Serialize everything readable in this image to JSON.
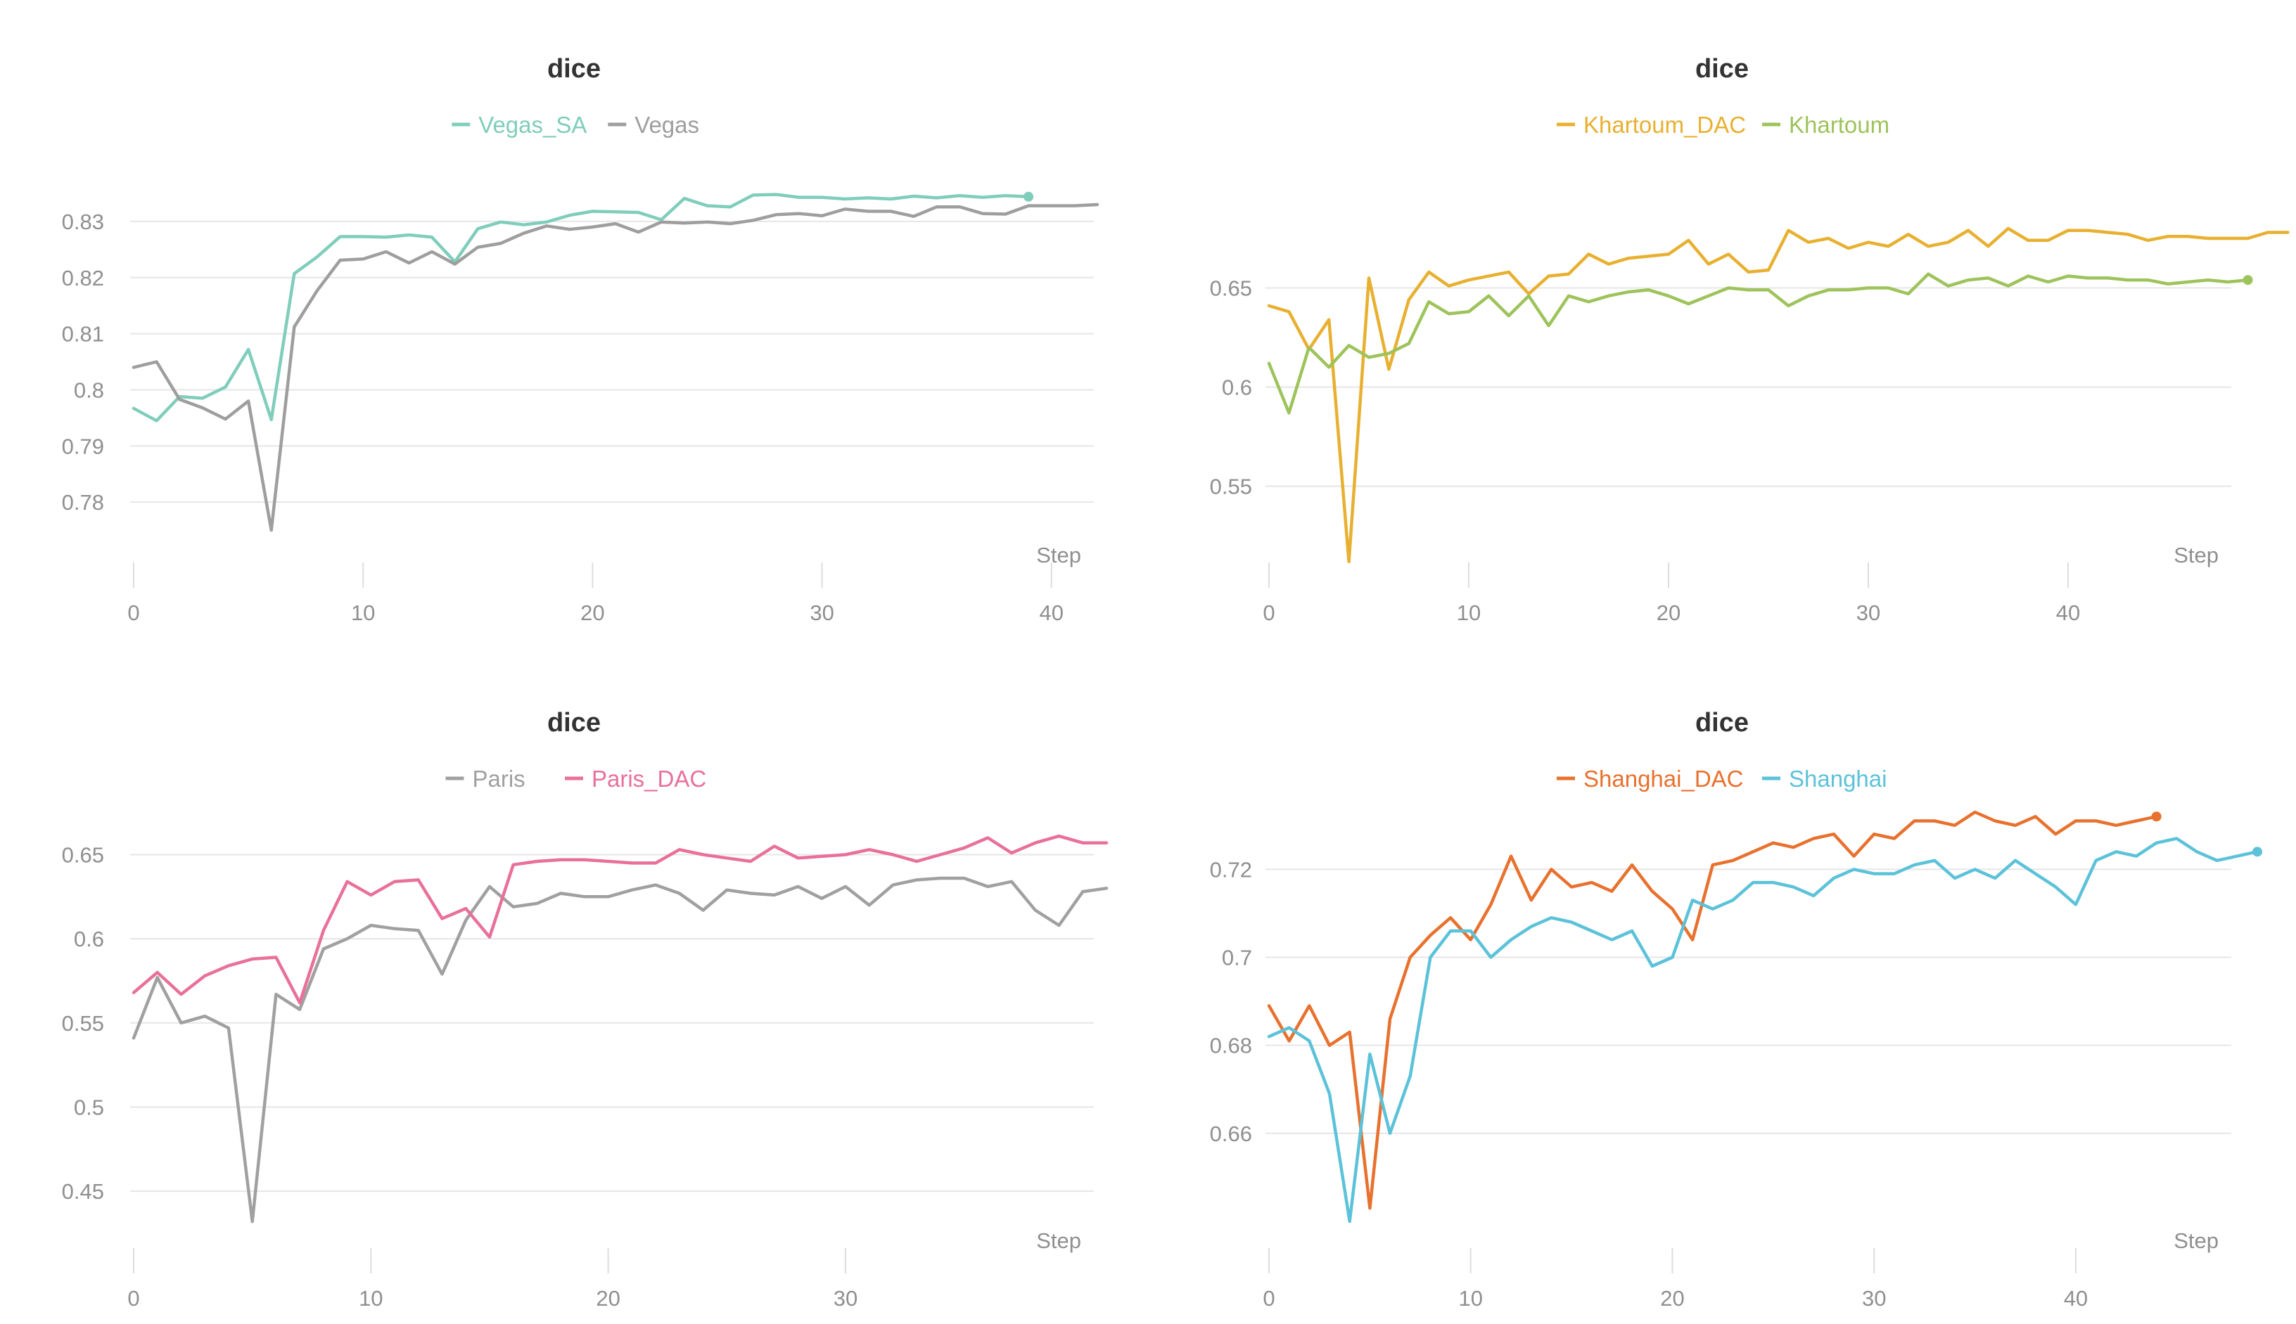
{
  "chart_data": [
    {
      "type": "line",
      "title": "dice",
      "xlabel": "Step",
      "xlim": [
        0,
        42
      ],
      "ylim": [
        0.773,
        0.835
      ],
      "xticks": [
        0,
        10,
        20,
        30,
        40
      ],
      "yticks": [
        0.78,
        0.79,
        0.8,
        0.81,
        0.82,
        0.83
      ],
      "yticklabels": [
        "0.78",
        "0.79",
        "0.8",
        "0.81",
        "0.82",
        "0.83"
      ],
      "legend_position": "top-center",
      "series": [
        {
          "name": "Vegas_SA",
          "color": "#7fcdbb",
          "values": [
            0.7967,
            0.7945,
            0.7988,
            0.7985,
            0.8005,
            0.8072,
            0.7947,
            0.8207,
            0.8237,
            0.8273,
            0.8273,
            0.8272,
            0.8276,
            0.8272,
            0.8228,
            0.8287,
            0.8299,
            0.8294,
            0.8299,
            0.8311,
            0.8318,
            0.8317,
            0.8316,
            0.8303,
            0.8341,
            0.8328,
            0.8326,
            0.8347,
            0.8348,
            0.8343,
            0.8343,
            0.834,
            0.8342,
            0.834,
            0.8345,
            0.8342,
            0.8346,
            0.8343,
            0.8346,
            0.8344
          ],
          "end_marker": true
        },
        {
          "name": "Vegas",
          "color": "#9e9e9e",
          "values": [
            0.804,
            0.805,
            0.7983,
            0.7968,
            0.7948,
            0.798,
            0.775,
            0.8112,
            0.8177,
            0.8231,
            0.8233,
            0.8246,
            0.8226,
            0.8246,
            0.8224,
            0.8254,
            0.8261,
            0.8279,
            0.8292,
            0.8286,
            0.829,
            0.8296,
            0.8281,
            0.8299,
            0.8297,
            0.8299,
            0.8296,
            0.8302,
            0.8312,
            0.8314,
            0.831,
            0.8322,
            0.8318,
            0.8318,
            0.8309,
            0.8326,
            0.8326,
            0.8314,
            0.8313,
            0.8328,
            0.8328,
            0.8328,
            0.833
          ]
        }
      ]
    },
    {
      "type": "line",
      "title": "dice",
      "xlabel": "Step",
      "xlim": [
        0,
        50
      ],
      "ylim": [
        0.508,
        0.703
      ],
      "xticks": [
        0,
        10,
        20,
        30,
        40
      ],
      "yticks": [
        0.55,
        0.6,
        0.65
      ],
      "yticklabels": [
        "0.55",
        "0.6",
        "0.65"
      ],
      "legend_position": "top-center",
      "series": [
        {
          "name": "Khartoum_DAC",
          "color": "#e8b030",
          "values": [
            0.641,
            0.638,
            0.619,
            0.634,
            0.512,
            0.655,
            0.609,
            0.644,
            0.658,
            0.651,
            0.654,
            0.656,
            0.658,
            0.647,
            0.656,
            0.657,
            0.667,
            0.662,
            0.665,
            0.666,
            0.667,
            0.674,
            0.662,
            0.667,
            0.658,
            0.659,
            0.679,
            0.673,
            0.675,
            0.67,
            0.673,
            0.671,
            0.677,
            0.671,
            0.673,
            0.679,
            0.671,
            0.68,
            0.674,
            0.674,
            0.679,
            0.679,
            0.678,
            0.677,
            0.674,
            0.676,
            0.676,
            0.675,
            0.675,
            0.675,
            0.678,
            0.678
          ]
        },
        {
          "name": "Khartoum",
          "color": "#9dc35a",
          "values": [
            0.612,
            0.587,
            0.62,
            0.61,
            0.621,
            0.615,
            0.617,
            0.622,
            0.643,
            0.637,
            0.638,
            0.646,
            0.636,
            0.646,
            0.631,
            0.646,
            0.643,
            0.646,
            0.648,
            0.649,
            0.646,
            0.642,
            0.646,
            0.65,
            0.649,
            0.649,
            0.641,
            0.646,
            0.649,
            0.649,
            0.65,
            0.65,
            0.647,
            0.657,
            0.651,
            0.654,
            0.655,
            0.651,
            0.656,
            0.653,
            0.656,
            0.655,
            0.655,
            0.654,
            0.654,
            0.652,
            0.653,
            0.654,
            0.653,
            0.654
          ],
          "end_marker": true
        }
      ]
    },
    {
      "type": "line",
      "title": "dice",
      "xlabel": "Step",
      "xlim": [
        0,
        41
      ],
      "ylim": [
        0.43,
        0.669
      ],
      "xticks": [
        0,
        10,
        20,
        30
      ],
      "yticks": [
        0.45,
        0.5,
        0.55,
        0.6,
        0.65
      ],
      "yticklabels": [
        "0.45",
        "0.5",
        "0.55",
        "0.6",
        "0.65"
      ],
      "legend_position": "top-center",
      "series": [
        {
          "name": "Paris",
          "color": "#a0a0a0",
          "values": [
            0.541,
            0.577,
            0.55,
            0.554,
            0.547,
            0.432,
            0.567,
            0.558,
            0.594,
            0.6,
            0.608,
            0.606,
            0.605,
            0.579,
            0.611,
            0.631,
            0.619,
            0.621,
            0.627,
            0.625,
            0.625,
            0.629,
            0.632,
            0.627,
            0.617,
            0.629,
            0.627,
            0.626,
            0.631,
            0.624,
            0.631,
            0.62,
            0.632,
            0.635,
            0.636,
            0.636,
            0.631,
            0.634,
            0.617,
            0.608,
            0.628,
            0.63
          ]
        },
        {
          "name": "Paris_DAC",
          "color": "#e8709a",
          "values": [
            0.568,
            0.58,
            0.567,
            0.578,
            0.584,
            0.588,
            0.589,
            0.562,
            0.605,
            0.634,
            0.626,
            0.634,
            0.635,
            0.612,
            0.618,
            0.601,
            0.644,
            0.646,
            0.647,
            0.647,
            0.646,
            0.645,
            0.645,
            0.653,
            0.65,
            0.648,
            0.646,
            0.655,
            0.648,
            0.649,
            0.65,
            0.653,
            0.65,
            0.646,
            0.65,
            0.654,
            0.66,
            0.651,
            0.657,
            0.661,
            0.657,
            0.657
          ]
        }
      ]
    },
    {
      "type": "line",
      "title": "dice",
      "xlabel": "Step",
      "xlim": [
        0,
        49
      ],
      "ylim": [
        0.64,
        0.733
      ],
      "xticks": [
        0,
        10,
        20,
        30,
        40
      ],
      "yticks": [
        0.66,
        0.68,
        0.7,
        0.72
      ],
      "yticklabels": [
        "0.66",
        "0.68",
        "0.7",
        "0.72"
      ],
      "legend_position": "top-center",
      "series": [
        {
          "name": "Shanghai_DAC",
          "color": "#e8712e",
          "values": [
            0.689,
            0.681,
            0.689,
            0.68,
            0.683,
            0.643,
            0.686,
            0.7,
            0.705,
            0.709,
            0.704,
            0.712,
            0.723,
            0.713,
            0.72,
            0.716,
            0.717,
            0.715,
            0.721,
            0.715,
            0.711,
            0.704,
            0.721,
            0.722,
            0.724,
            0.726,
            0.725,
            0.727,
            0.728,
            0.723,
            0.728,
            0.727,
            0.731,
            0.731,
            0.73,
            0.733,
            0.731,
            0.73,
            0.732,
            0.728,
            0.731,
            0.731,
            0.73,
            0.731,
            0.732
          ],
          "end_marker": true
        },
        {
          "name": "Shanghai",
          "color": "#5bc2d9",
          "values": [
            0.682,
            0.684,
            0.681,
            0.669,
            0.64,
            0.678,
            0.66,
            0.673,
            0.7,
            0.706,
            0.706,
            0.7,
            0.704,
            0.707,
            0.709,
            0.708,
            0.706,
            0.704,
            0.706,
            0.698,
            0.7,
            0.713,
            0.711,
            0.713,
            0.717,
            0.717,
            0.716,
            0.714,
            0.718,
            0.72,
            0.719,
            0.719,
            0.721,
            0.722,
            0.718,
            0.72,
            0.718,
            0.722,
            0.719,
            0.716,
            0.712,
            0.722,
            0.724,
            0.723,
            0.726,
            0.727,
            0.724,
            0.722,
            0.723,
            0.724
          ],
          "end_marker": true
        }
      ]
    }
  ]
}
